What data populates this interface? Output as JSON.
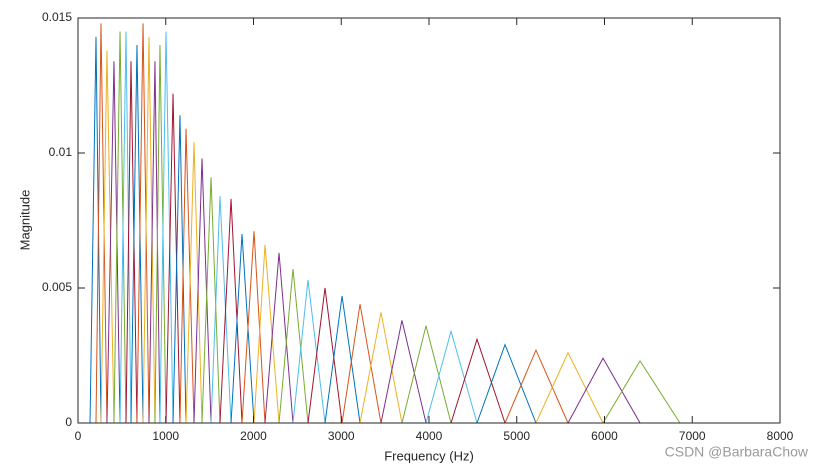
{
  "chart_data": {
    "type": "line",
    "xlabel": "Frequency (Hz)",
    "ylabel": "Magnitude",
    "xlim": [
      0,
      8000
    ],
    "xticks": [
      0,
      1000,
      2000,
      3000,
      4000,
      5000,
      6000,
      7000,
      8000
    ],
    "ylim": [
      0,
      0.015
    ],
    "yticks": [
      0,
      0.005,
      0.01,
      0.015
    ],
    "grid": false,
    "box": true,
    "watermark": "CSDN @BarbaraChow",
    "series": [
      {
        "color": "#0072BD",
        "x": [
          137,
          205,
          262
        ],
        "values": [
          0,
          0.0143,
          0
        ]
      },
      {
        "color": "#D95319",
        "x": [
          205,
          262,
          330
        ],
        "values": [
          0,
          0.0148,
          0
        ]
      },
      {
        "color": "#EDB120",
        "x": [
          262,
          330,
          410
        ],
        "values": [
          0,
          0.0138,
          0
        ]
      },
      {
        "color": "#7E2F8E",
        "x": [
          330,
          410,
          479
        ],
        "values": [
          0,
          0.0134,
          0
        ]
      },
      {
        "color": "#77AC30",
        "x": [
          410,
          479,
          547
        ],
        "values": [
          0,
          0.0145,
          0
        ]
      },
      {
        "color": "#4DBEEE",
        "x": [
          479,
          547,
          604
        ],
        "values": [
          0,
          0.0145,
          0
        ]
      },
      {
        "color": "#A2142F",
        "x": [
          547,
          604,
          672
        ],
        "values": [
          0,
          0.0134,
          0
        ]
      },
      {
        "color": "#0072BD",
        "x": [
          604,
          672,
          741
        ],
        "values": [
          0,
          0.014,
          0
        ]
      },
      {
        "color": "#D95319",
        "x": [
          672,
          741,
          809
        ],
        "values": [
          0,
          0.0148,
          0
        ]
      },
      {
        "color": "#EDB120",
        "x": [
          741,
          809,
          877
        ],
        "values": [
          0,
          0.0143,
          0
        ]
      },
      {
        "color": "#7E2F8E",
        "x": [
          809,
          877,
          934
        ],
        "values": [
          0,
          0.0134,
          0
        ]
      },
      {
        "color": "#77AC30",
        "x": [
          877,
          934,
          1003
        ],
        "values": [
          0,
          0.014,
          0
        ]
      },
      {
        "color": "#4DBEEE",
        "x": [
          934,
          1003,
          1083
        ],
        "values": [
          0,
          0.0145,
          0
        ]
      },
      {
        "color": "#A2142F",
        "x": [
          1003,
          1083,
          1162
        ],
        "values": [
          0,
          0.0122,
          0
        ]
      },
      {
        "color": "#0072BD",
        "x": [
          1083,
          1162,
          1231
        ],
        "values": [
          0,
          0.0114,
          0
        ]
      },
      {
        "color": "#D95319",
        "x": [
          1162,
          1231,
          1322
        ],
        "values": [
          0,
          0.0109,
          0
        ]
      },
      {
        "color": "#EDB120",
        "x": [
          1231,
          1322,
          1413
        ],
        "values": [
          0,
          0.0104,
          0
        ]
      },
      {
        "color": "#7E2F8E",
        "x": [
          1322,
          1413,
          1516
        ],
        "values": [
          0,
          0.0098,
          0
        ]
      },
      {
        "color": "#77AC30",
        "x": [
          1413,
          1516,
          1618
        ],
        "values": [
          0,
          0.0091,
          0
        ]
      },
      {
        "color": "#4DBEEE",
        "x": [
          1516,
          1618,
          1744
        ],
        "values": [
          0,
          0.0084,
          0
        ]
      },
      {
        "color": "#A2142F",
        "x": [
          1618,
          1744,
          1869
        ],
        "values": [
          0,
          0.0083,
          0
        ]
      },
      {
        "color": "#0072BD",
        "x": [
          1744,
          1869,
          2006
        ],
        "values": [
          0,
          0.007,
          0
        ]
      },
      {
        "color": "#D95319",
        "x": [
          1869,
          2006,
          2131
        ],
        "values": [
          0,
          0.0071,
          0
        ]
      },
      {
        "color": "#EDB120",
        "x": [
          2006,
          2131,
          2291
        ],
        "values": [
          0,
          0.0066,
          0
        ]
      },
      {
        "color": "#7E2F8E",
        "x": [
          2131,
          2291,
          2450
        ],
        "values": [
          0,
          0.0063,
          0
        ]
      },
      {
        "color": "#77AC30",
        "x": [
          2291,
          2450,
          2621
        ],
        "values": [
          0,
          0.0057,
          0
        ]
      },
      {
        "color": "#4DBEEE",
        "x": [
          2450,
          2621,
          2815
        ],
        "values": [
          0,
          0.0053,
          0
        ]
      },
      {
        "color": "#A2142F",
        "x": [
          2621,
          2815,
          3009
        ],
        "values": [
          0,
          0.005,
          0
        ]
      },
      {
        "color": "#0072BD",
        "x": [
          2815,
          3009,
          3214
        ],
        "values": [
          0,
          0.0047,
          0
        ]
      },
      {
        "color": "#D95319",
        "x": [
          3009,
          3214,
          3453
        ],
        "values": [
          0,
          0.0044,
          0
        ]
      },
      {
        "color": "#EDB120",
        "x": [
          3214,
          3453,
          3692
        ],
        "values": [
          0,
          0.0041,
          0
        ]
      },
      {
        "color": "#7E2F8E",
        "x": [
          3453,
          3692,
          3966
        ],
        "values": [
          0,
          0.0038,
          0
        ]
      },
      {
        "color": "#77AC30",
        "x": [
          3692,
          3966,
          4251
        ],
        "values": [
          0,
          0.0036,
          0
        ]
      },
      {
        "color": "#4DBEEE",
        "x": [
          3966,
          4251,
          4547
        ],
        "values": [
          0,
          0.0034,
          0
        ]
      },
      {
        "color": "#A2142F",
        "x": [
          4251,
          4547,
          4866
        ],
        "values": [
          0,
          0.0031,
          0
        ]
      },
      {
        "color": "#0072BD",
        "x": [
          4547,
          4866,
          5219
        ],
        "values": [
          0,
          0.0029,
          0
        ]
      },
      {
        "color": "#D95319",
        "x": [
          4866,
          5219,
          5584
        ],
        "values": [
          0,
          0.0027,
          0
        ]
      },
      {
        "color": "#EDB120",
        "x": [
          5219,
          5584,
          5983
        ],
        "values": [
          0,
          0.0026,
          0
        ]
      },
      {
        "color": "#7E2F8E",
        "x": [
          5584,
          5983,
          6405
        ],
        "values": [
          0,
          0.0024,
          0
        ]
      },
      {
        "color": "#77AC30",
        "x": [
          5983,
          6405,
          6860
        ],
        "values": [
          0,
          0.0023,
          0
        ]
      }
    ]
  }
}
